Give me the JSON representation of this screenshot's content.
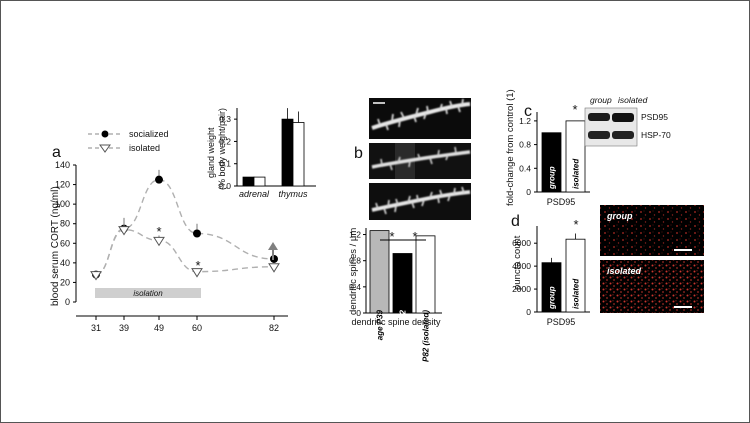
{
  "panels": {
    "a": "a",
    "b": "b",
    "c": "c",
    "d": "d"
  },
  "colors": {
    "black": "#000000",
    "white": "#ffffff",
    "grey_bar": "#b8b8b8",
    "dashed_line": "#b0b0b0",
    "iso_bar": "#cfcfcf",
    "arrow": "#808080",
    "puncta_red": "#c0302a"
  },
  "chart_data": [
    {
      "id": "cort",
      "type": "line",
      "ylabel": "blood serum CORT (ng/ml)",
      "xlabel": "",
      "x": [
        31,
        39,
        49,
        60,
        82
      ],
      "x_tick_labels": [
        "31",
        "39",
        "49",
        "60",
        "82"
      ],
      "ylim": [
        0,
        140
      ],
      "y_ticks": [
        "0",
        "20",
        "40",
        "60",
        "80",
        "100",
        "120",
        "140"
      ],
      "series": [
        {
          "name": "socialized",
          "marker": "filled-circle",
          "values": [
            28,
            75,
            125,
            70,
            44
          ],
          "err": [
            0,
            0,
            10,
            10,
            0
          ]
        },
        {
          "name": "isolated",
          "marker": "open-triangle",
          "values": [
            28,
            74,
            63,
            31,
            36
          ],
          "err": [
            0,
            12,
            5,
            2,
            0
          ]
        }
      ],
      "annotations": {
        "star_49": "*",
        "star_60": "*",
        "bar_label": "isolation"
      }
    },
    {
      "id": "gland",
      "type": "bar",
      "ylabel_1": "gland weight",
      "ylabel_2": "(% body weight/pair)",
      "categories": [
        "adrenal",
        "thymus"
      ],
      "ylim": [
        0,
        0.35
      ],
      "y_ticks": [
        "0.0",
        "0.1",
        "0.2",
        "0.3"
      ],
      "series": [
        {
          "values": [
            0.04,
            0.3
          ],
          "fill": "black"
        },
        {
          "values": [
            0.04,
            0.285
          ],
          "fill": "white"
        }
      ]
    },
    {
      "id": "spines",
      "type": "bar",
      "ylabel": "dendritic spines / μm",
      "xlabel": "dendritic spine density",
      "categories": [
        "age P39",
        "age P82",
        "P82 (isolated)"
      ],
      "values": [
        1.26,
        0.91,
        1.18
      ],
      "ylim": [
        0,
        1.3
      ],
      "y_ticks": [
        "0",
        "0.4",
        "0.8",
        "1.2"
      ],
      "stars": [
        "*",
        "*"
      ]
    },
    {
      "id": "psd95_blot",
      "type": "bar",
      "ylabel": "fold-change from control (1)",
      "xlabel": "PSD95",
      "categories": [
        "group",
        "isolated"
      ],
      "values": [
        1.0,
        1.2
      ],
      "ylim": [
        0,
        1.35
      ],
      "y_ticks": [
        "0",
        "0.4",
        "0.8",
        "1.2"
      ],
      "star": "*"
    },
    {
      "id": "puncta",
      "type": "bar",
      "ylabel": "puncta count",
      "xlabel": "PSD95",
      "categories": [
        "group",
        "isolated"
      ],
      "values": [
        4300,
        6350
      ],
      "ylim": [
        0,
        7500
      ],
      "y_ticks": [
        "0",
        "2000",
        "4000",
        "6000"
      ],
      "star": "*"
    }
  ],
  "western": {
    "headers": [
      "group",
      "isolated"
    ],
    "bands": [
      "PSD95",
      "HSP-70"
    ]
  },
  "micro": {
    "labels": [
      "group",
      "isolated"
    ]
  }
}
